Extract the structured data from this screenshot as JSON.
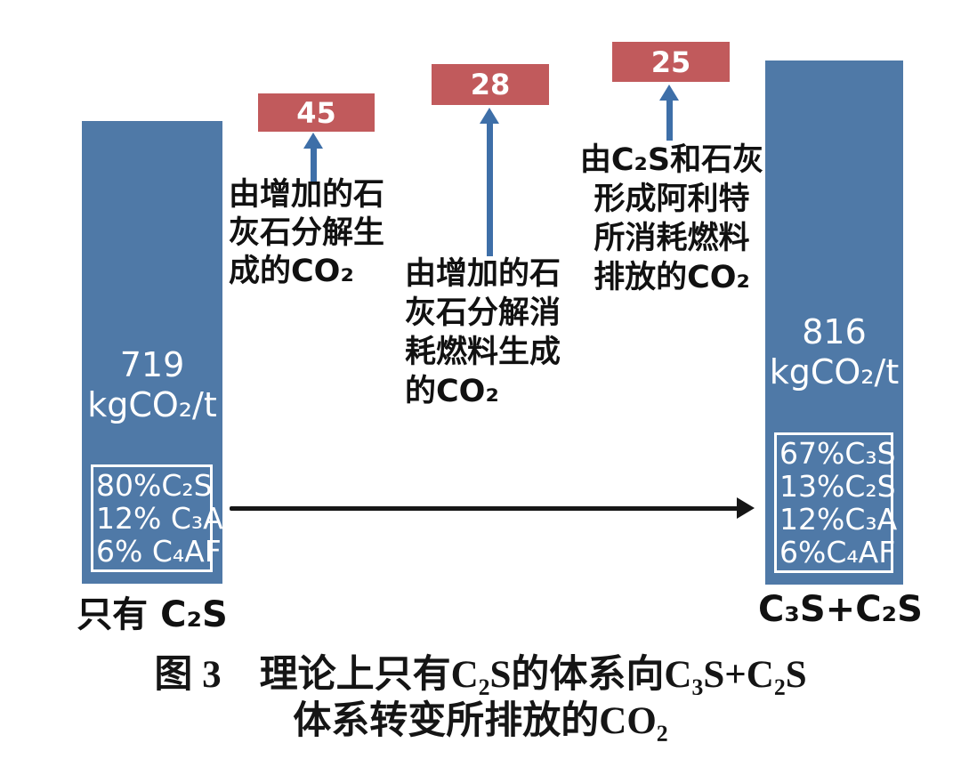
{
  "figure": {
    "left_bar": {
      "value": "719",
      "unit": "kgCO₂/t",
      "composition": [
        "80%C₂S",
        "12% C₃A",
        "6% C₄AF"
      ],
      "label": "只有 C₂S"
    },
    "right_bar": {
      "value": "816",
      "unit": "kgCO₂/t",
      "composition": [
        "67%C₃S",
        "13%C₂S",
        "12%C₃A",
        "6%C₄AF"
      ],
      "label": "C₃S+C₂S"
    },
    "deltas": [
      {
        "value": "45",
        "annotation": [
          "由增加的石",
          "灰石分解生",
          "成的CO₂"
        ]
      },
      {
        "value": "28",
        "annotation": [
          "由增加的石",
          "灰石分解消",
          "耗燃料生成",
          "的CO₂"
        ]
      },
      {
        "value": "25",
        "annotation": [
          "由C₂S和石灰",
          "形成阿利特",
          "所消耗燃料",
          "排放的CO₂"
        ]
      }
    ],
    "caption": {
      "line1": "图 3　理论上只有C₂S的体系向C₃S+C₂S",
      "line2": "体系转变所排放的CO₂"
    }
  },
  "colors": {
    "bar_blue": "#4f79a7",
    "delta_red": "#c15a5c",
    "arrow_blue": "#3e6fa8",
    "arrow_black": "#161616",
    "text_white": "#ffffff",
    "text_black": "#111111"
  },
  "chart_data": {
    "type": "bar",
    "title": "图 3 理论上只有C₂S的体系向C₃S+C₂S体系转变所排放的CO₂",
    "categories": [
      "只有 C₂S",
      "C₃S+C₂S"
    ],
    "values": [
      719,
      816
    ],
    "unit": "kgCO₂/t",
    "ylabel": "kgCO₂/t",
    "grid": false,
    "legend_position": "none",
    "bar_compositions": [
      [
        "80% C₂S",
        "12% C₃A",
        "6% C₄AF"
      ],
      [
        "67% C₃S",
        "13% C₂S",
        "12% C₃A",
        "6% C₄AF"
      ]
    ],
    "delta_contributions": [
      {
        "value": 45,
        "label": "由增加的石灰石分解生成的CO₂"
      },
      {
        "value": 28,
        "label": "由增加的石灰石分解消耗燃料生成的CO₂"
      },
      {
        "value": 25,
        "label": "由C₂S和石灰形成阿利特所消耗燃料排放的CO₂"
      }
    ],
    "transition_arrow": "只有C₂S体系 → C₃S+C₂S体系"
  }
}
